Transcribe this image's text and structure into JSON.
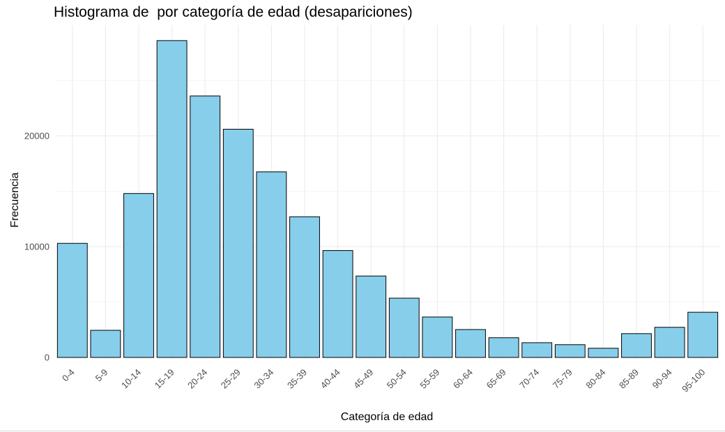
{
  "chart_data": {
    "type": "bar",
    "title": "Histograma de  por categoría de edad (desapariciones)",
    "xlabel": "Categoría de edad",
    "ylabel": "Frecuencia",
    "categories": [
      "0-4",
      "5-9",
      "10-14",
      "15-19",
      "20-24",
      "25-29",
      "30-34",
      "35-39",
      "40-44",
      "45-49",
      "50-54",
      "55-59",
      "60-64",
      "65-69",
      "70-74",
      "75-79",
      "80-84",
      "85-89",
      "90-94",
      "95-100"
    ],
    "values": [
      10300,
      2450,
      14800,
      28600,
      23600,
      20600,
      16750,
      12700,
      9650,
      7350,
      5350,
      3650,
      2520,
      1780,
      1330,
      1150,
      830,
      2150,
      2720,
      4080
    ],
    "ylim": [
      0,
      30000
    ],
    "yticks": [
      0,
      10000,
      20000
    ],
    "ytick_labels": [
      "0",
      "10000",
      "20000"
    ],
    "grid": true,
    "legend": "none",
    "bar_fill": "#87CEEB",
    "bar_stroke": "#000000"
  }
}
